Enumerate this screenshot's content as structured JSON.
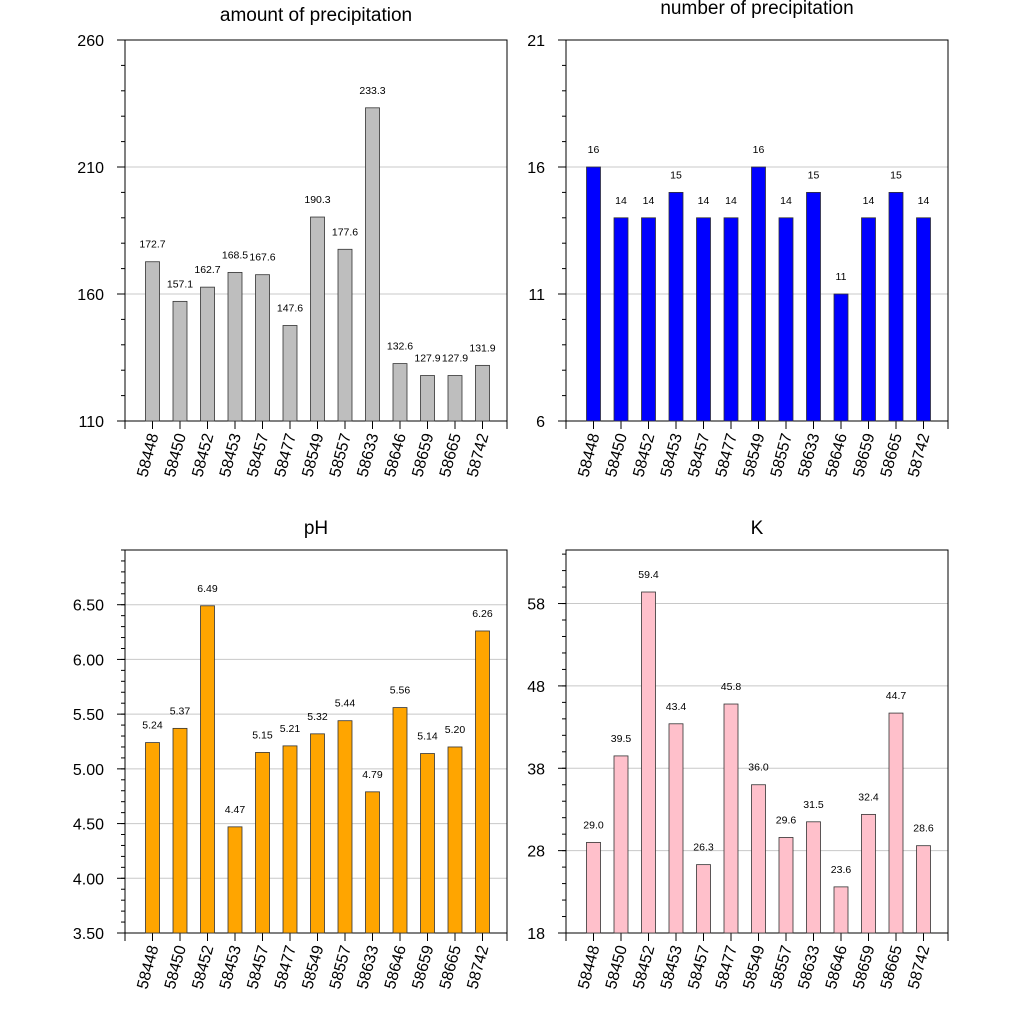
{
  "chart_data": [
    {
      "type": "bar",
      "title": "amount of precipitation",
      "categories": [
        "58448",
        "58450",
        "58452",
        "58453",
        "58457",
        "58477",
        "58549",
        "58557",
        "58633",
        "58646",
        "58659",
        "58665",
        "58742"
      ],
      "values": [
        172.7,
        157.1,
        162.7,
        168.5,
        167.6,
        147.6,
        190.3,
        177.6,
        233.3,
        132.6,
        127.9,
        127.9,
        131.9
      ],
      "value_labels": [
        "172.7",
        "157.1",
        "162.7",
        "168.5",
        "167.6",
        "147.6",
        "190.3",
        "177.6",
        "233.3",
        "132.6",
        "127.9",
        "127.9",
        "131.9"
      ],
      "ylim": [
        110,
        260
      ],
      "yticks": [
        110,
        160,
        210,
        260
      ],
      "ytick_labels": [
        "110",
        "160",
        "210",
        "260"
      ],
      "minor_step": 10,
      "grid": true,
      "color": "#bebebe",
      "xlabel": "",
      "ylabel": ""
    },
    {
      "type": "bar",
      "title": "number of precipitation",
      "categories": [
        "58448",
        "58450",
        "58452",
        "58453",
        "58457",
        "58477",
        "58549",
        "58557",
        "58633",
        "58646",
        "58659",
        "58665",
        "58742"
      ],
      "values": [
        16,
        14,
        14,
        15,
        14,
        14,
        16,
        14,
        15,
        11,
        14,
        15,
        14
      ],
      "value_labels": [
        "16",
        "14",
        "14",
        "15",
        "14",
        "14",
        "16",
        "14",
        "15",
        "11",
        "14",
        "15",
        "14"
      ],
      "ylim": [
        6,
        21
      ],
      "yticks": [
        6,
        11,
        16,
        21
      ],
      "ytick_labels": [
        "6",
        "11",
        "16",
        "21"
      ],
      "minor_step": 1,
      "grid": true,
      "color": "#0000ff",
      "xlabel": "",
      "ylabel": ""
    },
    {
      "type": "bar",
      "title": "pH",
      "categories": [
        "58448",
        "58450",
        "58452",
        "58453",
        "58457",
        "58477",
        "58549",
        "58557",
        "58633",
        "58646",
        "58659",
        "58665",
        "58742"
      ],
      "values": [
        5.24,
        5.37,
        6.49,
        4.47,
        5.15,
        5.21,
        5.32,
        5.44,
        4.79,
        5.56,
        5.14,
        5.2,
        6.26
      ],
      "value_labels": [
        "5.24",
        "5.37",
        "6.49",
        "4.47",
        "5.15",
        "5.21",
        "5.32",
        "5.44",
        "4.79",
        "5.56",
        "5.14",
        "5.20",
        "6.26"
      ],
      "ylim": [
        3.5,
        7.0
      ],
      "yticks": [
        3.5,
        4.0,
        4.5,
        5.0,
        5.5,
        6.0,
        6.5
      ],
      "ytick_labels": [
        "3.50",
        "4.00",
        "4.50",
        "5.00",
        "5.50",
        "6.00",
        "6.50"
      ],
      "minor_step": 0.1,
      "grid": true,
      "color": "#ffa500",
      "xlabel": "",
      "ylabel": ""
    },
    {
      "type": "bar",
      "title": "K",
      "categories": [
        "58448",
        "58450",
        "58452",
        "58453",
        "58457",
        "58477",
        "58549",
        "58557",
        "58633",
        "58646",
        "58659",
        "58665",
        "58742"
      ],
      "values": [
        29.0,
        39.5,
        59.4,
        43.4,
        26.3,
        45.8,
        36.0,
        29.6,
        31.5,
        23.6,
        32.4,
        44.7,
        28.6
      ],
      "value_labels": [
        "29.0",
        "39.5",
        "59.4",
        "43.4",
        "26.3",
        "45.8",
        "36.0",
        "29.6",
        "31.5",
        "23.6",
        "32.4",
        "44.7",
        "28.6"
      ],
      "ylim": [
        18,
        64.5
      ],
      "yticks": [
        18,
        28,
        38,
        48,
        58
      ],
      "ytick_labels": [
        "18",
        "28",
        "38",
        "48",
        "58"
      ],
      "minor_step": 2,
      "grid": true,
      "color": "#ffc0cb",
      "xlabel": "",
      "ylabel": ""
    }
  ]
}
